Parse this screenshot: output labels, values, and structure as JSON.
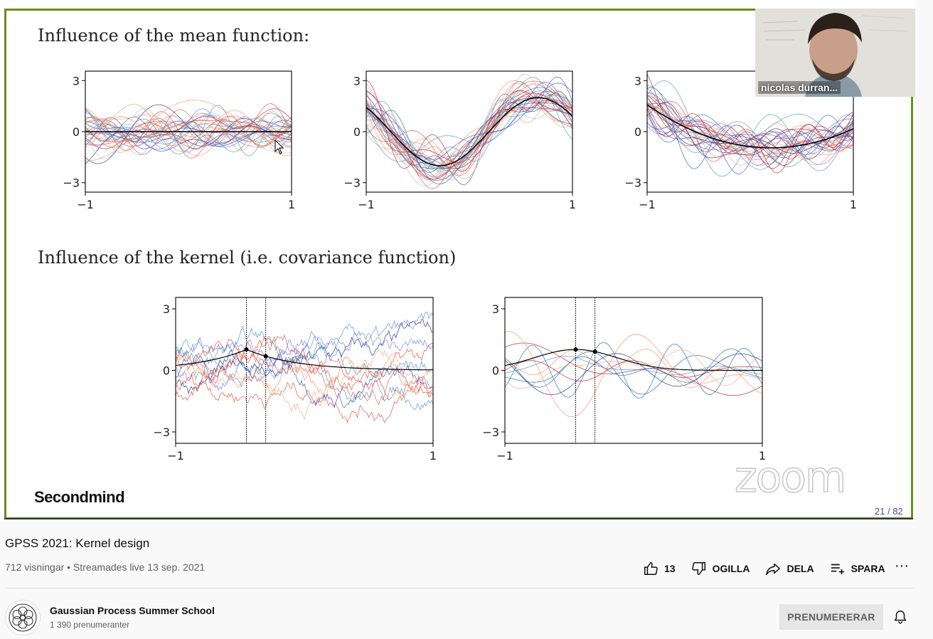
{
  "slide": {
    "section1_title": "Influence of the mean function:",
    "section2_title": "Influence of the kernel (i.e. covariance function)",
    "brand": "Secondmind",
    "zoom_watermark": "zoom",
    "page_indicator": "21 / 82",
    "plots": {
      "ytick_top": "3",
      "ytick_mid": "0",
      "ytick_bottom": "−3",
      "xtick_left": "−1",
      "xtick_right": "1"
    },
    "mean_functions": [
      "zero",
      "sine",
      "quadratic"
    ],
    "colors": {
      "red_series": "#d7301f",
      "blue_series": "#3b4cc0",
      "mean_line": "#000000"
    }
  },
  "webcam": {
    "participant_name": "nicolas durran..."
  },
  "video": {
    "title": "GPSS 2021: Kernel design",
    "views": "712 visningar",
    "separator": "•",
    "streamed": "Streamades live 13 sep. 2021"
  },
  "actions": {
    "like_count": "13",
    "dislike_label": "OGILLA",
    "share_label": "DELA",
    "save_label": "SPARA",
    "more_label": "···"
  },
  "channel": {
    "name": "Gaussian Process Summer School",
    "subscribers": "1 390 prenumeranter",
    "subscribe_label": "PRENUMERERAR"
  }
}
